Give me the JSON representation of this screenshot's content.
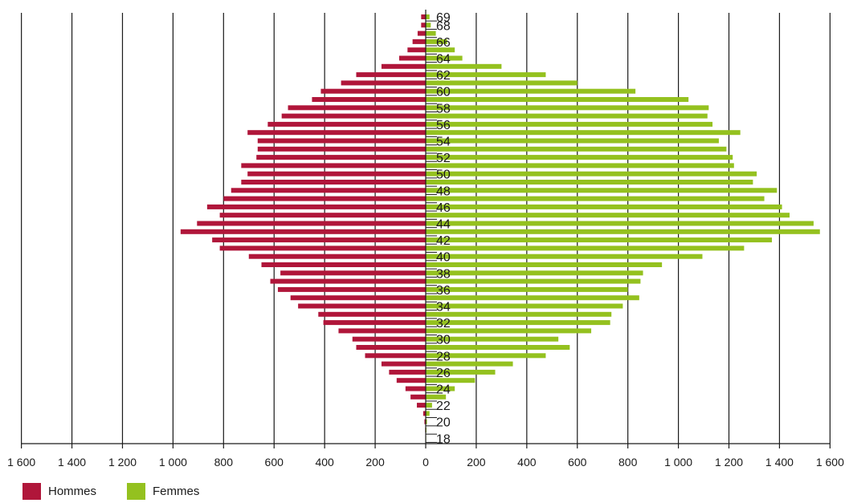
{
  "chart_data": {
    "type": "bar",
    "orientation": "horizontal",
    "layout": "population-pyramid",
    "x_ticks": [
      "1 600",
      "1 400",
      "1 200",
      "1 000",
      "800",
      "600",
      "400",
      "200",
      "0",
      "200",
      "400",
      "600",
      "800",
      "1 000",
      "1 200",
      "1 400",
      "1 600"
    ],
    "x_range": [
      -1600,
      1600
    ],
    "age_labels": [
      "69",
      "68",
      "66",
      "64",
      "62",
      "60",
      "58",
      "56",
      "54",
      "52",
      "50",
      "48",
      "46",
      "44",
      "42",
      "40",
      "38",
      "36",
      "34",
      "32",
      "30",
      "28",
      "26",
      "24",
      "22",
      "20",
      "18"
    ],
    "ages": [
      69,
      68,
      67,
      66,
      65,
      64,
      63,
      62,
      61,
      60,
      59,
      58,
      57,
      56,
      55,
      54,
      53,
      52,
      51,
      50,
      49,
      48,
      47,
      46,
      45,
      44,
      43,
      42,
      41,
      40,
      39,
      38,
      37,
      36,
      35,
      34,
      33,
      32,
      31,
      30,
      29,
      28,
      27,
      26,
      25,
      24,
      23,
      22,
      21,
      20,
      19,
      18
    ],
    "series": [
      {
        "name": "Hommes",
        "color": "#b0163a",
        "side": "left",
        "values": [
          18,
          18,
          32,
          52,
          72,
          105,
          175,
          275,
          335,
          415,
          450,
          545,
          570,
          625,
          705,
          665,
          665,
          670,
          730,
          705,
          730,
          770,
          800,
          865,
          815,
          905,
          970,
          845,
          815,
          700,
          650,
          575,
          615,
          585,
          535,
          505,
          425,
          405,
          345,
          290,
          275,
          240,
          175,
          145,
          115,
          80,
          60,
          35,
          10,
          5,
          2,
          0
        ]
      },
      {
        "name": "Femmes",
        "color": "#94c11f",
        "side": "right",
        "values": [
          15,
          20,
          40,
          85,
          115,
          145,
          300,
          475,
          600,
          830,
          1040,
          1120,
          1115,
          1135,
          1245,
          1160,
          1190,
          1215,
          1220,
          1310,
          1295,
          1390,
          1340,
          1410,
          1440,
          1535,
          1560,
          1370,
          1260,
          1095,
          935,
          860,
          850,
          800,
          845,
          780,
          735,
          730,
          655,
          525,
          570,
          475,
          345,
          275,
          195,
          115,
          80,
          25,
          15,
          5,
          3,
          2
        ]
      }
    ]
  },
  "legend": {
    "hommes_label": "Hommes",
    "femmes_label": "Femmes",
    "hommes_color": "#b0163a",
    "femmes_color": "#94c11f"
  }
}
